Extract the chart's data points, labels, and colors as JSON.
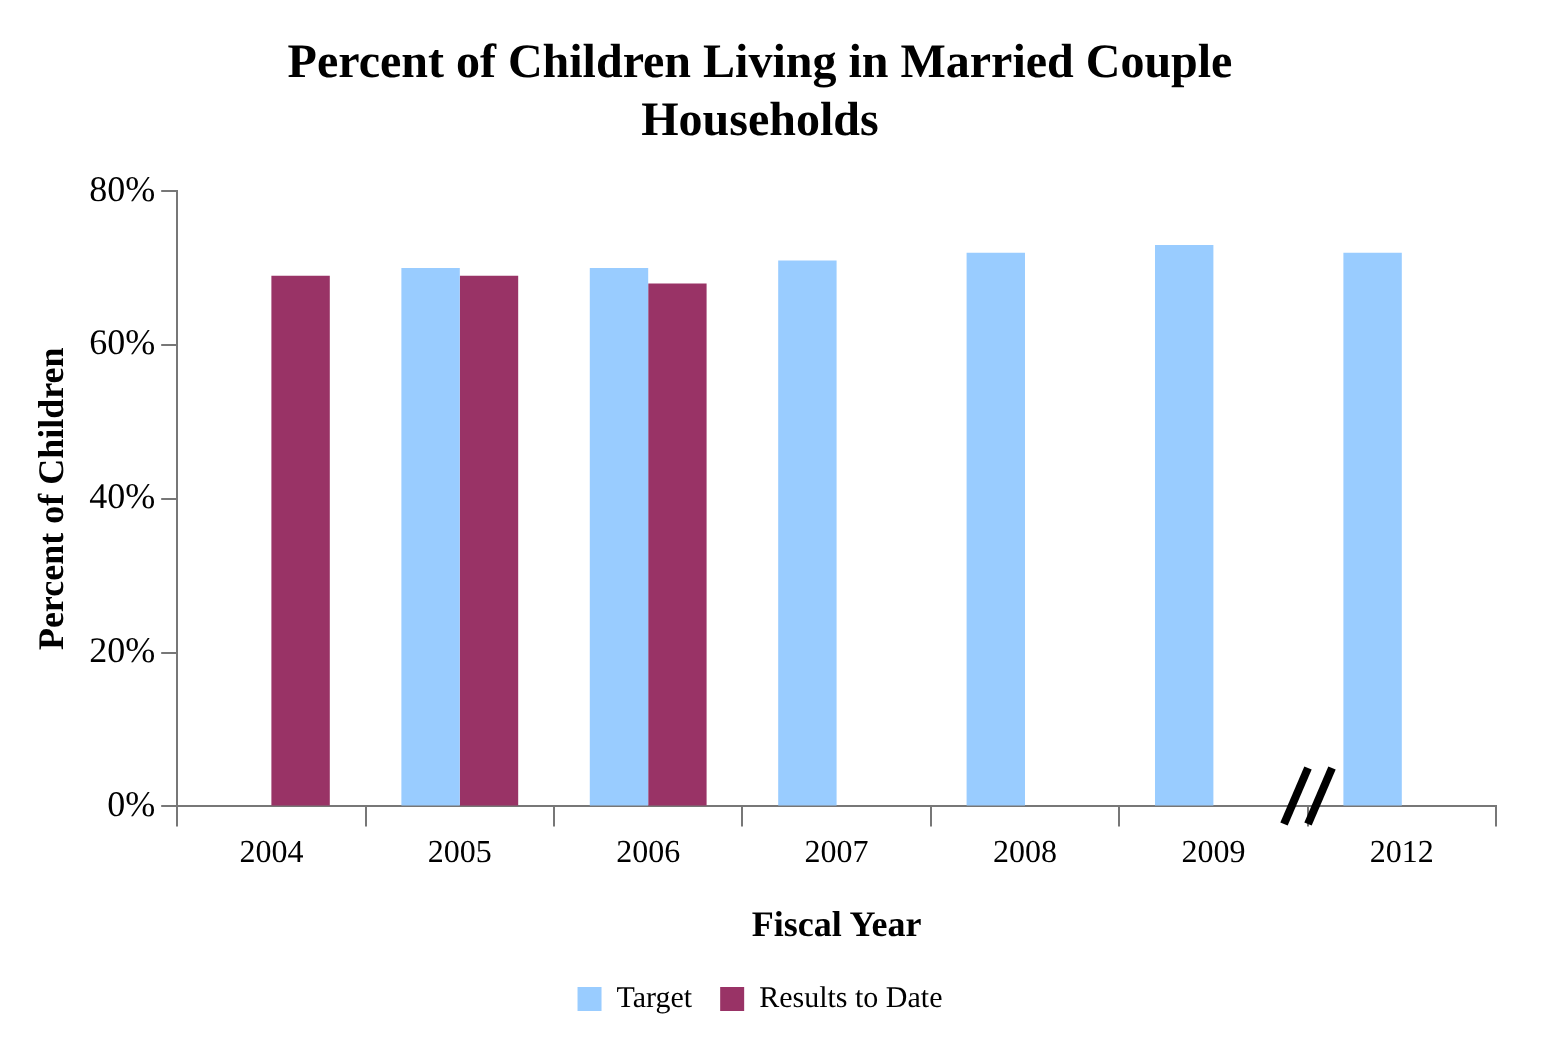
{
  "chart_data": {
    "type": "bar",
    "title": "Percent of Children Living in Married Couple Households",
    "xlabel": "Fiscal Year",
    "ylabel": "Percent of Children",
    "categories": [
      "2004",
      "2005",
      "2006",
      "2007",
      "2008",
      "2009",
      "2012"
    ],
    "series": [
      {
        "name": "Target",
        "color": "#99ccff",
        "values": [
          null,
          70,
          70,
          71,
          72,
          73,
          72
        ]
      },
      {
        "name": "Results to Date",
        "color": "#993366",
        "values": [
          69,
          69,
          68,
          null,
          null,
          null,
          null
        ]
      }
    ],
    "ylim": [
      0,
      80
    ],
    "yticks": [
      {
        "value": 0,
        "label": "0%"
      },
      {
        "value": 20,
        "label": "20%"
      },
      {
        "value": 40,
        "label": "40%"
      },
      {
        "value": 60,
        "label": "60%"
      },
      {
        "value": 80,
        "label": "80%"
      }
    ],
    "grid": false,
    "legend": "bottom"
  }
}
